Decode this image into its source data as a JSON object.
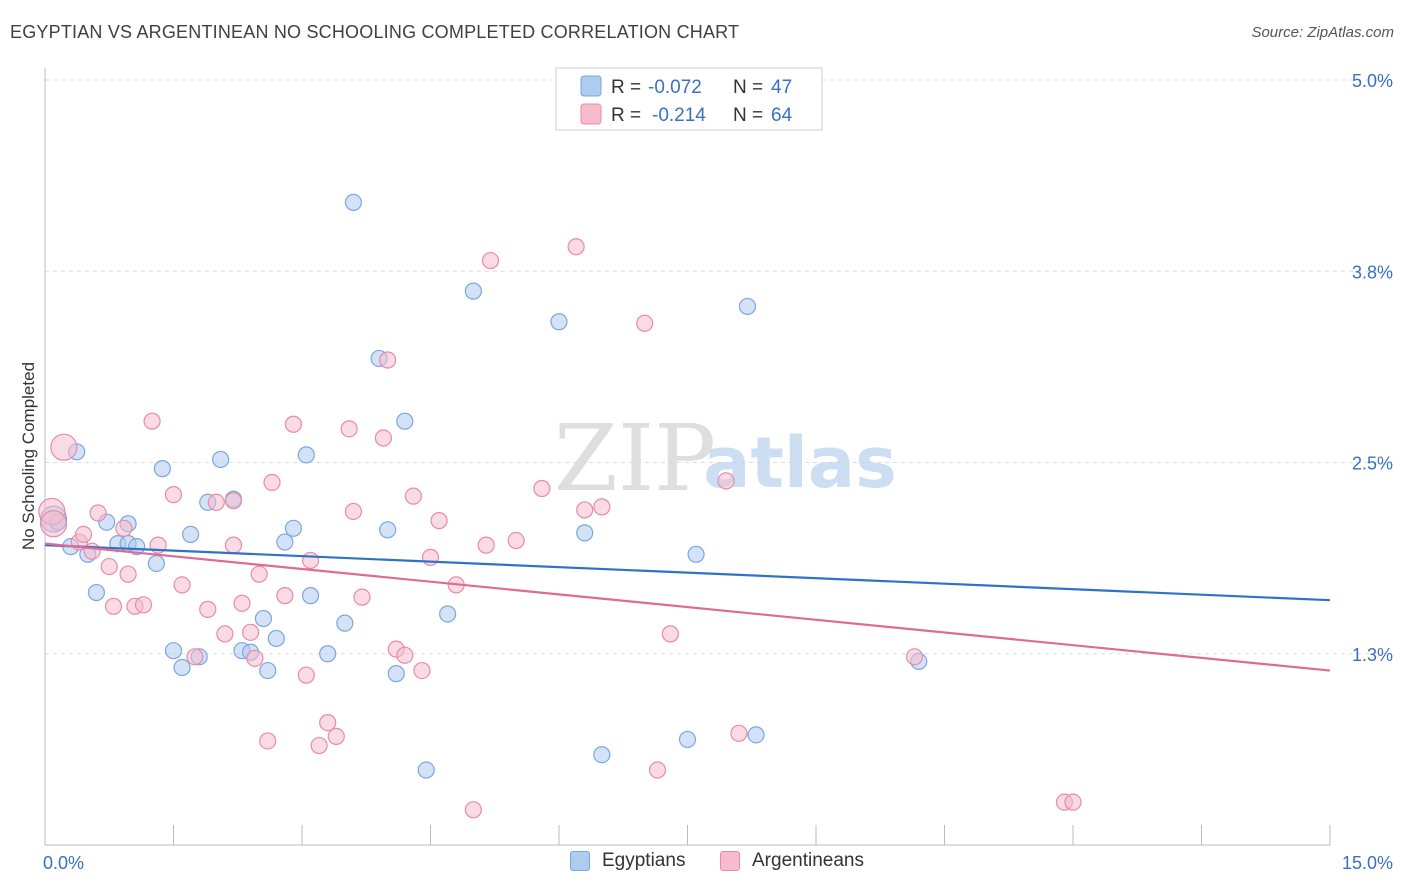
{
  "header": {
    "title": "EGYPTIAN VS ARGENTINEAN NO SCHOOLING COMPLETED CORRELATION CHART",
    "source": "Source: ZipAtlas.com"
  },
  "watermark": {
    "zip": "ZIP",
    "atlas": "atlas"
  },
  "colors": {
    "blue_fill": "#aecbf0",
    "blue_stroke": "#7aa7de",
    "blue_line": "#2f72c8",
    "pink_fill": "#f6bccd",
    "pink_stroke": "#e88ba8",
    "pink_line": "#e06a94",
    "value_text": "#3a6fc4",
    "grid": "#dddddd"
  },
  "chart_data": {
    "type": "scatter",
    "title": "EGYPTIAN VS ARGENTINEAN NO SCHOOLING COMPLETED CORRELATION CHART",
    "xlabel": "",
    "ylabel": "No Schooling Completed",
    "xlim": [
      0.0,
      15.0
    ],
    "ylim": [
      0.0,
      5.0
    ],
    "x_tick_labels": {
      "min": "0.0%",
      "max": "15.0%"
    },
    "y_ticks": [
      {
        "value": 5.0,
        "label": "5.0%"
      },
      {
        "value": 3.75,
        "label": "3.8%"
      },
      {
        "value": 2.5,
        "label": "2.5%"
      },
      {
        "value": 1.25,
        "label": "1.3%"
      }
    ],
    "grid": "horizontal dashed",
    "legend": {
      "placement": "top-center",
      "rows": [
        {
          "r_label": "R =",
          "r_value": "-0.072",
          "n_label": "N =",
          "n_value": "47"
        },
        {
          "r_label": "R =",
          "r_value": "-0.214",
          "n_label": "N =",
          "n_value": "64"
        }
      ]
    },
    "series": [
      {
        "name": "Egyptians",
        "color": "blue",
        "trend": {
          "x": [
            0.0,
            15.0
          ],
          "y": [
            1.96,
            1.6
          ]
        },
        "points": [
          {
            "x": 0.1,
            "y": 2.13,
            "s": "l"
          },
          {
            "x": 0.3,
            "y": 1.95
          },
          {
            "x": 0.37,
            "y": 2.57
          },
          {
            "x": 0.5,
            "y": 1.9
          },
          {
            "x": 0.6,
            "y": 1.65
          },
          {
            "x": 0.72,
            "y": 2.11
          },
          {
            "x": 0.85,
            "y": 1.97
          },
          {
            "x": 0.97,
            "y": 2.1
          },
          {
            "x": 0.97,
            "y": 1.97
          },
          {
            "x": 1.07,
            "y": 1.95
          },
          {
            "x": 1.3,
            "y": 1.84
          },
          {
            "x": 1.37,
            "y": 2.46
          },
          {
            "x": 1.5,
            "y": 1.27
          },
          {
            "x": 1.6,
            "y": 1.16
          },
          {
            "x": 1.7,
            "y": 2.03
          },
          {
            "x": 1.8,
            "y": 1.23
          },
          {
            "x": 1.9,
            "y": 2.24
          },
          {
            "x": 2.05,
            "y": 2.52
          },
          {
            "x": 2.2,
            "y": 2.26
          },
          {
            "x": 2.3,
            "y": 1.27
          },
          {
            "x": 2.4,
            "y": 1.26
          },
          {
            "x": 2.55,
            "y": 1.48
          },
          {
            "x": 2.6,
            "y": 1.14
          },
          {
            "x": 2.7,
            "y": 1.35
          },
          {
            "x": 2.8,
            "y": 1.98
          },
          {
            "x": 2.9,
            "y": 2.07
          },
          {
            "x": 3.05,
            "y": 2.55
          },
          {
            "x": 3.1,
            "y": 1.63
          },
          {
            "x": 3.3,
            "y": 1.25
          },
          {
            "x": 3.5,
            "y": 1.45
          },
          {
            "x": 3.6,
            "y": 4.2
          },
          {
            "x": 3.9,
            "y": 3.18
          },
          {
            "x": 4.0,
            "y": 2.06
          },
          {
            "x": 4.1,
            "y": 1.12
          },
          {
            "x": 4.2,
            "y": 2.77
          },
          {
            "x": 4.45,
            "y": 0.49
          },
          {
            "x": 4.7,
            "y": 1.51
          },
          {
            "x": 5.0,
            "y": 3.62
          },
          {
            "x": 6.0,
            "y": 3.42
          },
          {
            "x": 6.3,
            "y": 2.04
          },
          {
            "x": 6.5,
            "y": 0.59
          },
          {
            "x": 7.5,
            "y": 0.69
          },
          {
            "x": 7.6,
            "y": 1.9
          },
          {
            "x": 8.2,
            "y": 3.52
          },
          {
            "x": 8.3,
            "y": 0.72
          },
          {
            "x": 10.2,
            "y": 1.2
          },
          {
            "x": 0.15,
            "y": 2.11
          }
        ]
      },
      {
        "name": "Argentineans",
        "color": "pink",
        "trend": {
          "x": [
            0.0,
            15.0
          ],
          "y": [
            1.97,
            1.14
          ]
        },
        "points": [
          {
            "x": 0.08,
            "y": 2.18,
            "s": "l"
          },
          {
            "x": 0.1,
            "y": 2.1,
            "s": "l"
          },
          {
            "x": 0.22,
            "y": 2.6,
            "s": "l"
          },
          {
            "x": 0.4,
            "y": 1.98
          },
          {
            "x": 0.45,
            "y": 2.03
          },
          {
            "x": 0.55,
            "y": 1.92
          },
          {
            "x": 0.62,
            "y": 2.17
          },
          {
            "x": 0.75,
            "y": 1.82
          },
          {
            "x": 0.8,
            "y": 1.56
          },
          {
            "x": 0.92,
            "y": 2.07
          },
          {
            "x": 0.97,
            "y": 1.77
          },
          {
            "x": 1.05,
            "y": 1.56
          },
          {
            "x": 1.15,
            "y": 1.57
          },
          {
            "x": 1.25,
            "y": 2.77
          },
          {
            "x": 1.32,
            "y": 1.96
          },
          {
            "x": 1.5,
            "y": 2.29
          },
          {
            "x": 1.6,
            "y": 1.7
          },
          {
            "x": 1.75,
            "y": 1.23
          },
          {
            "x": 1.9,
            "y": 1.54
          },
          {
            "x": 2.0,
            "y": 2.24
          },
          {
            "x": 2.1,
            "y": 1.38
          },
          {
            "x": 2.2,
            "y": 1.96
          },
          {
            "x": 2.3,
            "y": 1.58
          },
          {
            "x": 2.4,
            "y": 1.39
          },
          {
            "x": 2.45,
            "y": 1.22
          },
          {
            "x": 2.6,
            "y": 0.68
          },
          {
            "x": 2.5,
            "y": 1.77
          },
          {
            "x": 2.65,
            "y": 2.37
          },
          {
            "x": 2.8,
            "y": 1.63
          },
          {
            "x": 2.9,
            "y": 2.75
          },
          {
            "x": 3.05,
            "y": 1.11
          },
          {
            "x": 3.1,
            "y": 1.86
          },
          {
            "x": 3.2,
            "y": 0.65
          },
          {
            "x": 3.3,
            "y": 0.8
          },
          {
            "x": 3.4,
            "y": 0.71
          },
          {
            "x": 3.55,
            "y": 2.72
          },
          {
            "x": 3.6,
            "y": 2.18
          },
          {
            "x": 3.7,
            "y": 1.62
          },
          {
            "x": 3.95,
            "y": 2.66
          },
          {
            "x": 4.0,
            "y": 3.17
          },
          {
            "x": 4.1,
            "y": 1.28
          },
          {
            "x": 4.2,
            "y": 1.24
          },
          {
            "x": 4.3,
            "y": 2.28
          },
          {
            "x": 4.4,
            "y": 1.14
          },
          {
            "x": 4.5,
            "y": 1.88
          },
          {
            "x": 4.6,
            "y": 2.12
          },
          {
            "x": 4.8,
            "y": 1.7
          },
          {
            "x": 5.0,
            "y": 0.23
          },
          {
            "x": 5.15,
            "y": 1.96
          },
          {
            "x": 5.2,
            "y": 3.82
          },
          {
            "x": 5.5,
            "y": 1.99
          },
          {
            "x": 5.8,
            "y": 2.33
          },
          {
            "x": 6.2,
            "y": 3.91
          },
          {
            "x": 6.3,
            "y": 2.19
          },
          {
            "x": 6.5,
            "y": 2.21
          },
          {
            "x": 7.0,
            "y": 3.41
          },
          {
            "x": 7.15,
            "y": 0.49
          },
          {
            "x": 7.3,
            "y": 1.38
          },
          {
            "x": 7.95,
            "y": 2.38
          },
          {
            "x": 8.1,
            "y": 0.73
          },
          {
            "x": 10.15,
            "y": 1.23
          },
          {
            "x": 11.9,
            "y": 0.28
          },
          {
            "x": 12.0,
            "y": 0.28
          },
          {
            "x": 2.2,
            "y": 2.25
          }
        ]
      }
    ]
  }
}
